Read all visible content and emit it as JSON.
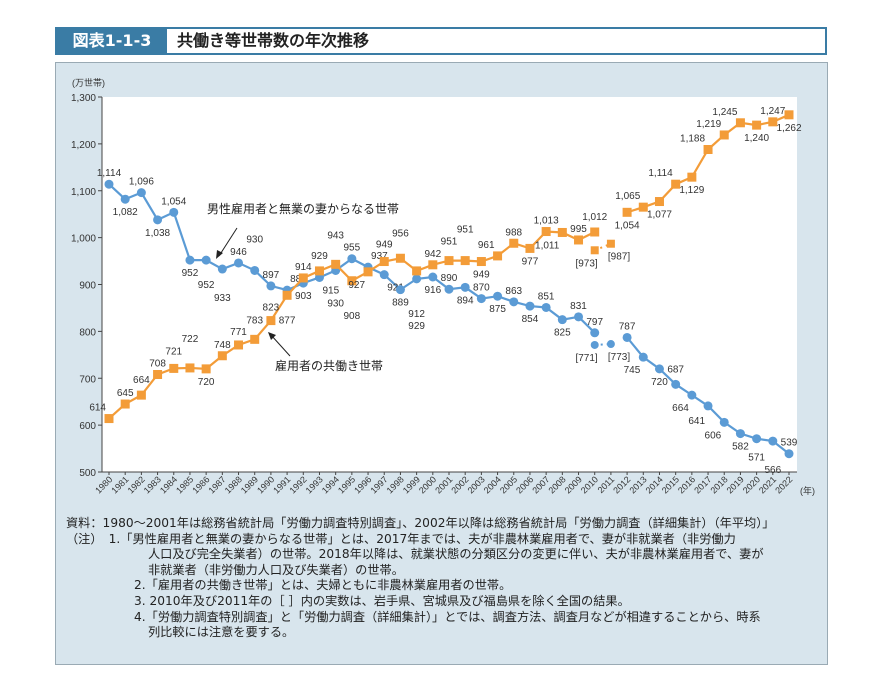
{
  "header": {
    "figure_number": "図表1-1-3",
    "title": "共働き等世帯数の年次推移"
  },
  "chart_data": {
    "type": "line",
    "title": "共働き等世帯数の年次推移",
    "ylabel": "(万世帯)",
    "xlabel": "(年)",
    "ylim": [
      500,
      1300
    ],
    "yticks": [
      500,
      600,
      700,
      800,
      900,
      1000,
      1100,
      1200,
      1300
    ],
    "ytick_labels": [
      "500",
      "600",
      "700",
      "800",
      "900",
      "1,000",
      "1,100",
      "1,200",
      "1,300"
    ],
    "x": [
      1980,
      1981,
      1982,
      1983,
      1984,
      1985,
      1986,
      1987,
      1988,
      1989,
      1990,
      1991,
      1992,
      1993,
      1994,
      1995,
      1996,
      1997,
      1998,
      1999,
      2000,
      2001,
      2002,
      2003,
      2004,
      2005,
      2006,
      2007,
      2008,
      2009,
      2010,
      2011,
      2012,
      2013,
      2014,
      2015,
      2016,
      2017,
      2018,
      2019,
      2020,
      2021,
      2022
    ],
    "grid": false,
    "series": [
      {
        "name": "男性雇用者と無業の妻からなる世帯",
        "color": "#5b9bd5",
        "marker": "circle",
        "values": [
          1114,
          1082,
          1096,
          1038,
          1054,
          952,
          952,
          933,
          946,
          930,
          897,
          888,
          903,
          915,
          930,
          955,
          937,
          921,
          889,
          912,
          916,
          890,
          894,
          870,
          875,
          863,
          854,
          851,
          825,
          831,
          797,
          null,
          787,
          745,
          720,
          687,
          664,
          641,
          606,
          582,
          571,
          566,
          539
        ],
        "bracket_values": {
          "2010": 771,
          "2011": 773
        }
      },
      {
        "name": "雇用者の共働き世帯",
        "color": "#f39c38",
        "marker": "square",
        "values": [
          614,
          645,
          664,
          708,
          721,
          722,
          720,
          748,
          771,
          783,
          823,
          877,
          914,
          929,
          943,
          908,
          927,
          949,
          956,
          929,
          942,
          951,
          951,
          949,
          961,
          988,
          977,
          1013,
          1011,
          995,
          1012,
          null,
          1054,
          1065,
          1077,
          1114,
          1129,
          1188,
          1219,
          1245,
          1240,
          1247,
          1262
        ],
        "bracket_values": {
          "2010": 973,
          "2011": 987
        }
      }
    ],
    "annotations": [
      "男性雇用者と無業の妻からなる世帯",
      "雇用者の共働き世帯"
    ]
  },
  "notes": {
    "source": "資料：1980～2001年は総務省統計局「労働力調査特別調査」、2002年以降は総務省統計局「労働力調査（詳細集計）（年平均）」",
    "n1a": "（注）　1.「男性雇用者と無業の妻からなる世帯」とは、2017年までは、夫が非農林業雇用者で、妻が非就業者（非労働力",
    "n1b": "人口及び完全失業者）の世帯。2018年以降は、就業状態の分類区分の変更に伴い、夫が非農林業雇用者で、妻が",
    "n1c": "非就業者（非労働力人口及び失業者）の世帯。",
    "n2": "2.「雇用者の共働き世帯」とは、夫婦ともに非農林業雇用者の世帯。",
    "n3": "3. 2010年及び2011年の［ ］内の実数は、岩手県、宮城県及び福島県を除く全国の結果。",
    "n4a": "4.「労働力調査特別調査」と「労働力調査（詳細集計）」とでは、調査方法、調査月などが相違することから、時系",
    "n4b": "列比較には注意を要する。"
  }
}
